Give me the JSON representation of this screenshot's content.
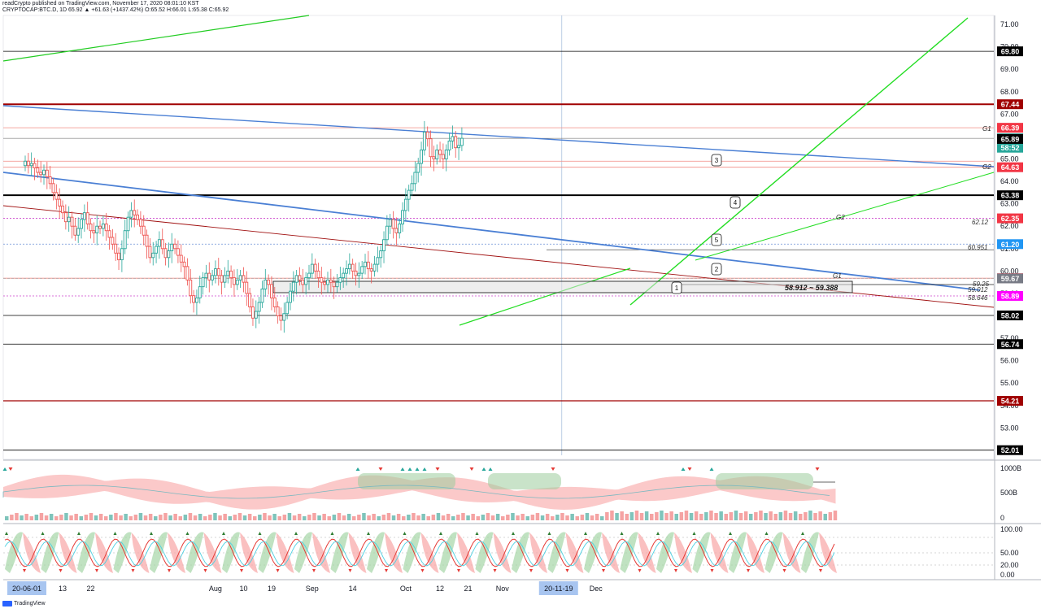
{
  "header": {
    "line1": "readCrypto published on TradingView.com, November 17, 2020 08:01:10 KST",
    "line2": "CRYPTOCAP:BTC.D, 1D  65.92  ▲ +61.63 (+1437.42%)  O:65.52  H:66.01  L:65.38  C:65.92"
  },
  "footer": {
    "brand": "TradingView"
  },
  "colors": {
    "up": "#26a69a",
    "down": "#ef5350",
    "blue_line": "#4a7fd4",
    "green_line": "#22dd22",
    "dark_red": "#a00000",
    "label_red": "#f23645",
    "label_black": "#000000",
    "label_teal": "#26a69a",
    "label_grey": "#787b86",
    "label_magenta": "#ff00ff",
    "label_blue": "#2196f3",
    "date_highlight": "#a8c5f0"
  },
  "chart_data": [
    {
      "type": "candlestick",
      "title": "CRYPTOCAP:BTC.D, 1D",
      "x_start": "2020-06-01",
      "x_interval": "1D",
      "ylim": [
        51.6,
        71.4
      ],
      "y_ticks": [
        "71.00",
        "70.00",
        "69.00",
        "68.00",
        "67.00",
        "66.00",
        "65.00",
        "64.00",
        "63.00",
        "62.00",
        "61.00",
        "60.00",
        "59.00",
        "58.00",
        "57.00",
        "56.00",
        "55.00",
        "54.00",
        "53.00"
      ],
      "x_ticks": [
        {
          "date": "2020-06-01",
          "label": "20-06-01",
          "highlight": true
        },
        {
          "date": "2020-06-13",
          "label": "13"
        },
        {
          "date": "2020-06-22",
          "label": "22"
        },
        {
          "date": "2020-08-01",
          "label": "Aug"
        },
        {
          "date": "2020-08-10",
          "label": "10"
        },
        {
          "date": "2020-08-19",
          "label": "19"
        },
        {
          "date": "2020-09-01",
          "label": "Sep"
        },
        {
          "date": "2020-09-14",
          "label": "14"
        },
        {
          "date": "2020-10-01",
          "label": "Oct"
        },
        {
          "date": "2020-10-12",
          "label": "12"
        },
        {
          "date": "2020-10-21",
          "label": "21"
        },
        {
          "date": "2020-11-01",
          "label": "Nov"
        },
        {
          "date": "2020-11-19",
          "label": "20-11-19",
          "highlight": true
        },
        {
          "date": "2020-12-01",
          "label": "Dec"
        }
      ],
      "ohlc_close": [
        64.9,
        64.7,
        64.8,
        64.6,
        64.4,
        64.3,
        64.5,
        64.2,
        63.9,
        63.5,
        63.2,
        62.9,
        62.6,
        62.2,
        62.4,
        62.0,
        61.6,
        61.9,
        62.3,
        62.6,
        62.1,
        61.8,
        61.7,
        62.0,
        61.9,
        62.1,
        61.8,
        61.5,
        61.2,
        60.8,
        60.5,
        61.0,
        61.8,
        62.4,
        62.7,
        62.5,
        62.3,
        62.0,
        61.6,
        61.1,
        60.6,
        60.8,
        61.1,
        61.4,
        61.0,
        60.6,
        60.9,
        61.2,
        61.0,
        60.7,
        60.4,
        60.2,
        59.6,
        58.9,
        58.6,
        58.8,
        59.3,
        59.7,
        59.9,
        59.6,
        59.8,
        60.1,
        59.8,
        59.5,
        59.8,
        60.0,
        59.7,
        59.4,
        59.6,
        59.8,
        59.5,
        59.0,
        58.4,
        57.9,
        58.2,
        58.6,
        59.2,
        59.6,
        59.4,
        58.8,
        58.4,
        58.0,
        57.8,
        58.1,
        58.6,
        59.1,
        59.5,
        59.8,
        59.6,
        59.4,
        59.7,
        59.9,
        60.3,
        60.0,
        59.7,
        59.5,
        59.4,
        59.6,
        59.5,
        59.3,
        59.5,
        59.7,
        59.9,
        60.1,
        60.3,
        60.0,
        59.8,
        59.9,
        60.2,
        60.4,
        60.1,
        60.0,
        60.3,
        60.6,
        60.9,
        61.4,
        62.0,
        62.3,
        61.9,
        61.7,
        62.1,
        62.7,
        63.2,
        63.6,
        63.9,
        64.4,
        64.8,
        65.4,
        66.2,
        65.9,
        65.1,
        65.0,
        65.4,
        65.2,
        65.0,
        65.4,
        65.8,
        66.0,
        65.5,
        65.6,
        65.92
      ],
      "horizontal_levels": [
        {
          "value": 69.8,
          "label": "69.80",
          "color": "#000000"
        },
        {
          "value": 67.44,
          "label": "67.44",
          "color": "#a00000"
        },
        {
          "value": 66.39,
          "label": "66.39",
          "color": "#f23645",
          "tag": "G1"
        },
        {
          "value": 65.92,
          "label": "65.92",
          "color": "#26a69a"
        },
        {
          "value": 65.5,
          "label": "58:52",
          "color": "#26a69a"
        },
        {
          "value": 65.89,
          "label": "65.89",
          "color": "#000000",
          "tag": "G2"
        },
        {
          "value": 64.63,
          "label": "64.63",
          "color": "#f23645"
        },
        {
          "value": 63.38,
          "label": "63.38",
          "color": "#000000"
        },
        {
          "value": 62.35,
          "label": "62.35",
          "color": "#f23645"
        },
        {
          "value": 61.2,
          "label": "61.20",
          "color": "#2196f3"
        },
        {
          "value": 59.68,
          "label": "59.68",
          "color": "#f23645"
        },
        {
          "value": 59.67,
          "label": "59.67",
          "color": "#787b86"
        },
        {
          "value": 58.89,
          "label": "58.89",
          "color": "#ff00ff"
        },
        {
          "value": 58.02,
          "label": "58.02",
          "color": "#000000"
        },
        {
          "value": 56.74,
          "label": "56.74",
          "color": "#000000"
        },
        {
          "value": 54.21,
          "label": "54.21",
          "color": "#a00000"
        },
        {
          "value": 52.01,
          "label": "52.01",
          "color": "#000000"
        }
      ],
      "annotations": {
        "zone_label": "58.912 ~ 59.388",
        "small_labels": [
          "62.12",
          "60.951",
          "59.25",
          "59.012",
          "58.646"
        ],
        "wave_labels": [
          "1",
          "2",
          "3",
          "4",
          "5"
        ],
        "g_labels": [
          "G1",
          "G2",
          "G2",
          "G1"
        ]
      }
    },
    {
      "type": "area+bar",
      "ylim": [
        0,
        1100
      ],
      "y_ticks": [
        "1000B",
        "500B",
        "0"
      ]
    },
    {
      "type": "line",
      "ylim": [
        -5,
        105
      ],
      "y_ticks": [
        "100.00",
        "50.00",
        "20.00",
        "0.00"
      ]
    }
  ]
}
